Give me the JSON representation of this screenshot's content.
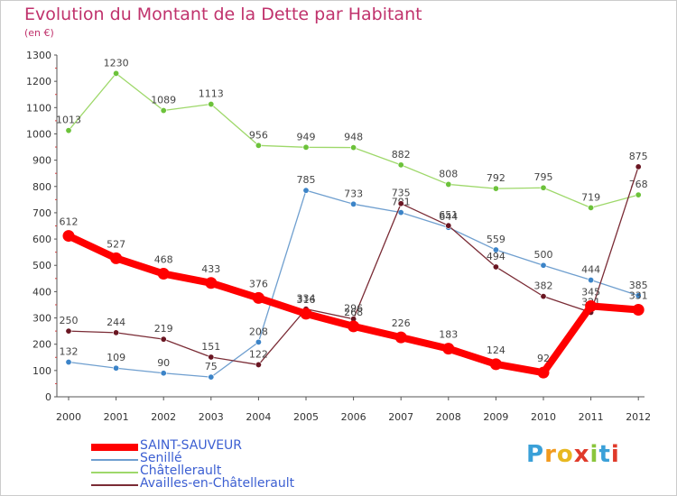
{
  "header": {
    "title": "Evolution du Montant de la Dette par Habitant",
    "unit": "(en €)"
  },
  "logo": {
    "text": "Proxiti",
    "letters": [
      "P",
      "r",
      "o",
      "x",
      "i",
      "t",
      "i"
    ],
    "colors": [
      "#3aa0d8",
      "#f29a1e",
      "#e8b820",
      "#e03a2a",
      "#8ac63c",
      "#3aa0d8",
      "#e03a2a"
    ]
  },
  "chart_data": {
    "type": "line",
    "title": "Evolution du Montant de la Dette par Habitant",
    "subtitle": "(en €)",
    "xlabel": "",
    "ylabel": "",
    "x": [
      "2000",
      "2001",
      "2002",
      "2003",
      "2004",
      "2005",
      "2006",
      "2007",
      "2008",
      "2009",
      "2010",
      "2011",
      "2012"
    ],
    "ylim": [
      0,
      1300
    ],
    "yticks": [
      0,
      100,
      200,
      300,
      400,
      500,
      600,
      700,
      800,
      900,
      1000,
      1100,
      1200,
      1300
    ],
    "grid": false,
    "legend_position": "bottom-left",
    "series": [
      {
        "name": "Châtellerault",
        "color": "#9ed86a",
        "marker": "#6cc23a",
        "width": "thin",
        "values": [
          1013,
          1230,
          1089,
          1113,
          956,
          949,
          948,
          882,
          808,
          792,
          795,
          719,
          768
        ],
        "labels": [
          "1013",
          "1230",
          "1089",
          "1113",
          "956",
          "949",
          "948",
          "882",
          "808",
          "792",
          "795",
          "719",
          "768"
        ]
      },
      {
        "name": "Senillé",
        "color": "#6f9fcf",
        "marker": "#3c84c8",
        "width": "thin",
        "values": [
          132,
          109,
          90,
          75,
          208,
          785,
          733,
          701,
          644,
          559,
          500,
          444,
          385
        ],
        "labels": [
          "132",
          "109",
          "90",
          "75",
          "208",
          "785",
          "733",
          "701",
          "644",
          "559",
          "500",
          "444",
          "385"
        ]
      },
      {
        "name": "Availles-en-Châtellerault",
        "color": "#7a2b35",
        "marker": "#6a1622",
        "width": "thin",
        "values": [
          250,
          244,
          219,
          151,
          122,
          334,
          296,
          735,
          651,
          494,
          382,
          321,
          875
        ],
        "labels": [
          "250",
          "244",
          "219",
          "151",
          "122",
          "334",
          "296",
          "735",
          "651",
          "494",
          "382",
          "321",
          "875"
        ]
      },
      {
        "name": "SAINT-SAUVEUR",
        "color": "#ff0000",
        "marker": "#ff0000",
        "width": "thick",
        "values": [
          612,
          527,
          468,
          433,
          376,
          316,
          268,
          226,
          183,
          124,
          92,
          345,
          331
        ],
        "labels": [
          "612",
          "527",
          "468",
          "433",
          "376",
          "316",
          "268",
          "226",
          "183",
          "124",
          "92",
          "345",
          "331"
        ]
      }
    ],
    "legend_order": [
      "SAINT-SAUVEUR",
      "Senillé",
      "Châtellerault",
      "Availles-en-Châtellerault"
    ]
  }
}
